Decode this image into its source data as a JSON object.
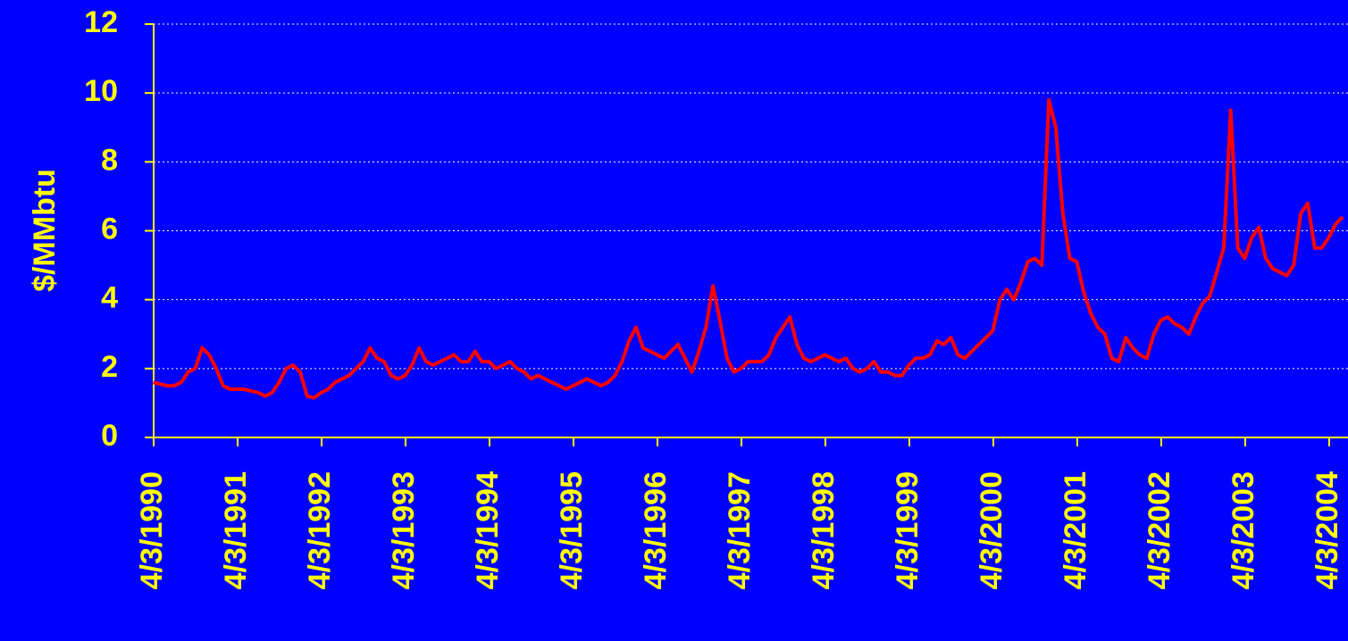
{
  "chart_data": {
    "type": "line",
    "y_label": "$/MMbtu",
    "ylim": [
      0,
      12
    ],
    "yticks": [
      0,
      2,
      4,
      6,
      8,
      10,
      12
    ],
    "xlim": [
      "1990-04-03",
      "2004-06-24"
    ],
    "xticks": [
      {
        "value": "1990-04-03",
        "label": "4/3/1990"
      },
      {
        "value": "1991-04-03",
        "label": "4/3/1991"
      },
      {
        "value": "1992-04-03",
        "label": "4/3/1992"
      },
      {
        "value": "1993-04-03",
        "label": "4/3/1993"
      },
      {
        "value": "1994-04-03",
        "label": "4/3/1994"
      },
      {
        "value": "1995-04-03",
        "label": "4/3/1995"
      },
      {
        "value": "1996-04-03",
        "label": "4/3/1996"
      },
      {
        "value": "1997-04-03",
        "label": "4/3/1997"
      },
      {
        "value": "1998-04-03",
        "label": "4/3/1998"
      },
      {
        "value": "1999-04-03",
        "label": "4/3/1999"
      },
      {
        "value": "2000-04-03",
        "label": "4/3/2000"
      },
      {
        "value": "2001-04-03",
        "label": "4/3/2001"
      },
      {
        "value": "2002-04-03",
        "label": "4/3/2002"
      },
      {
        "value": "2003-04-03",
        "label": "4/3/2003"
      },
      {
        "value": "2004-04-03",
        "label": "4/3/2004"
      }
    ],
    "grid": true,
    "background": "#0000ff",
    "text_color": "#ffff00",
    "x": [
      "1990-04",
      "1990-05",
      "1990-06",
      "1990-07",
      "1990-08",
      "1990-09",
      "1990-10",
      "1990-11",
      "1990-12",
      "1991-01",
      "1991-02",
      "1991-03",
      "1991-04",
      "1991-05",
      "1991-06",
      "1991-07",
      "1991-08",
      "1991-09",
      "1991-10",
      "1991-11",
      "1991-12",
      "1992-01",
      "1992-02",
      "1992-03",
      "1992-04",
      "1992-05",
      "1992-06",
      "1992-07",
      "1992-08",
      "1992-09",
      "1992-10",
      "1992-11",
      "1992-12",
      "1993-01",
      "1993-02",
      "1993-03",
      "1993-04",
      "1993-05",
      "1993-06",
      "1993-07",
      "1993-08",
      "1993-09",
      "1993-10",
      "1993-11",
      "1993-12",
      "1994-01",
      "1994-02",
      "1994-03",
      "1994-04",
      "1994-05",
      "1994-06",
      "1994-07",
      "1994-08",
      "1994-09",
      "1994-10",
      "1994-11",
      "1994-12",
      "1995-01",
      "1995-02",
      "1995-03",
      "1995-04",
      "1995-05",
      "1995-06",
      "1995-07",
      "1995-08",
      "1995-09",
      "1995-10",
      "1995-11",
      "1995-12",
      "1996-01",
      "1996-02",
      "1996-03",
      "1996-04",
      "1996-05",
      "1996-06",
      "1996-07",
      "1996-08",
      "1996-09",
      "1996-10",
      "1996-11",
      "1996-12",
      "1997-01",
      "1997-02",
      "1997-03",
      "1997-04",
      "1997-05",
      "1997-06",
      "1997-07",
      "1997-08",
      "1997-09",
      "1997-10",
      "1997-11",
      "1997-12",
      "1998-01",
      "1998-02",
      "1998-03",
      "1998-04",
      "1998-05",
      "1998-06",
      "1998-07",
      "1998-08",
      "1998-09",
      "1998-10",
      "1998-11",
      "1998-12",
      "1999-01",
      "1999-02",
      "1999-03",
      "1999-04",
      "1999-05",
      "1999-06",
      "1999-07",
      "1999-08",
      "1999-09",
      "1999-10",
      "1999-11",
      "1999-12",
      "2000-01",
      "2000-02",
      "2000-03",
      "2000-04",
      "2000-05",
      "2000-06",
      "2000-07",
      "2000-08",
      "2000-09",
      "2000-10",
      "2000-11",
      "2000-12",
      "2001-01",
      "2001-02",
      "2001-03",
      "2001-04",
      "2001-05",
      "2001-06",
      "2001-07",
      "2001-08",
      "2001-09",
      "2001-10",
      "2001-11",
      "2001-12",
      "2002-01",
      "2002-02",
      "2002-03",
      "2002-04",
      "2002-05",
      "2002-06",
      "2002-07",
      "2002-08",
      "2002-09",
      "2002-10",
      "2002-11",
      "2002-12",
      "2003-01",
      "2003-02",
      "2003-03",
      "2003-04",
      "2003-05",
      "2003-06",
      "2003-07",
      "2003-08",
      "2003-09",
      "2003-10",
      "2003-11",
      "2003-12",
      "2004-01",
      "2004-02",
      "2004-03",
      "2004-04",
      "2004-05",
      "2004-06"
    ],
    "series": [
      {
        "color": "#ff0000",
        "values": [
          1.6,
          1.55,
          1.5,
          1.5,
          1.6,
          1.9,
          2.0,
          2.6,
          2.4,
          2.0,
          1.5,
          1.4,
          1.4,
          1.4,
          1.35,
          1.3,
          1.2,
          1.3,
          1.6,
          2.0,
          2.1,
          1.9,
          1.2,
          1.15,
          1.3,
          1.4,
          1.6,
          1.7,
          1.8,
          2.0,
          2.2,
          2.6,
          2.3,
          2.2,
          1.8,
          1.7,
          1.8,
          2.1,
          2.6,
          2.2,
          2.1,
          2.2,
          2.3,
          2.4,
          2.2,
          2.2,
          2.5,
          2.2,
          2.2,
          2.0,
          2.1,
          2.2,
          2.0,
          1.9,
          1.7,
          1.8,
          1.7,
          1.6,
          1.5,
          1.4,
          1.5,
          1.6,
          1.7,
          1.6,
          1.5,
          1.6,
          1.8,
          2.2,
          2.8,
          3.2,
          2.6,
          2.5,
          2.4,
          2.3,
          2.5,
          2.7,
          2.3,
          1.9,
          2.5,
          3.2,
          4.4,
          3.4,
          2.3,
          1.9,
          2.0,
          2.2,
          2.2,
          2.2,
          2.4,
          2.9,
          3.2,
          3.5,
          2.7,
          2.3,
          2.2,
          2.3,
          2.4,
          2.3,
          2.2,
          2.3,
          2.0,
          1.9,
          2.0,
          2.2,
          1.9,
          1.9,
          1.8,
          1.8,
          2.1,
          2.3,
          2.3,
          2.4,
          2.8,
          2.7,
          2.9,
          2.4,
          2.3,
          2.5,
          2.7,
          2.9,
          3.1,
          4.0,
          4.3,
          4.0,
          4.5,
          5.1,
          5.2,
          5.0,
          9.8,
          9.0,
          6.5,
          5.2,
          5.1,
          4.2,
          3.6,
          3.2,
          3.0,
          2.3,
          2.2,
          2.9,
          2.6,
          2.4,
          2.3,
          3.0,
          3.4,
          3.5,
          3.3,
          3.2,
          3.0,
          3.5,
          3.9,
          4.1,
          4.8,
          5.5,
          9.5,
          5.5,
          5.2,
          5.8,
          6.1,
          5.2,
          4.9,
          4.8,
          4.7,
          5.0,
          6.5,
          6.8,
          5.5,
          5.5,
          5.8,
          6.2,
          6.4
        ]
      }
    ]
  }
}
